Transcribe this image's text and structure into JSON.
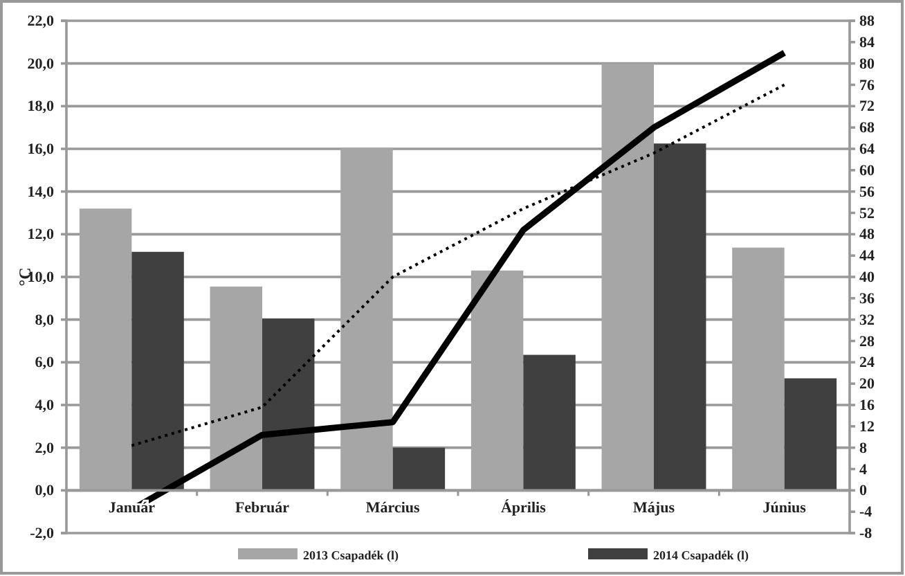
{
  "chart_data": {
    "type": "bar",
    "ylabel": "°C",
    "categories": [
      "Január",
      "Február",
      "Március",
      "Április",
      "Május",
      "Június"
    ],
    "series": [
      {
        "name": "2013 Csapadék (l)",
        "color": "#a6a6a6",
        "axis": "y2",
        "values": [
          52.8,
          38.2,
          64.2,
          41.2,
          80,
          45.5
        ]
      },
      {
        "name": "2014 Csapadék (l)",
        "color": "#404040",
        "axis": "y2",
        "values": [
          44.7,
          32.2,
          8,
          25.4,
          65,
          21
        ]
      },
      {
        "type": "line",
        "color": "#000000",
        "axis": "y",
        "line_style": "solid",
        "values": [
          -0.9,
          2.6,
          3.2,
          12.2,
          17.0,
          20.5
        ]
      },
      {
        "type": "line",
        "color": "#000000",
        "axis": "y",
        "line_style": "dotted",
        "values": [
          2.1,
          3.9,
          10.0,
          13.2,
          15.8,
          19.0
        ]
      }
    ],
    "ylim": [
      -2,
      22
    ],
    "yticks": [
      {
        "value": -2,
        "label": "-2,0"
      },
      {
        "value": 0,
        "label": "0,0"
      },
      {
        "value": 2,
        "label": "2,0"
      },
      {
        "value": 4,
        "label": "4,0"
      },
      {
        "value": 6,
        "label": "6,0"
      },
      {
        "value": 8,
        "label": "8,0"
      },
      {
        "value": 10,
        "label": "10,0"
      },
      {
        "value": 12,
        "label": "12,0"
      },
      {
        "value": 14,
        "label": "14,0"
      },
      {
        "value": 16,
        "label": "16,0"
      },
      {
        "value": 18,
        "label": "18,0"
      },
      {
        "value": 20,
        "label": "20,0"
      },
      {
        "value": 22,
        "label": "22,0"
      }
    ],
    "y2lim": [
      -8,
      88
    ],
    "y2ticks": [
      -8,
      -4,
      0,
      4,
      8,
      12,
      16,
      20,
      24,
      28,
      32,
      36,
      40,
      44,
      48,
      52,
      56,
      60,
      64,
      68,
      72,
      76,
      80,
      84,
      88
    ],
    "grid": "y",
    "legend": "bottom"
  }
}
